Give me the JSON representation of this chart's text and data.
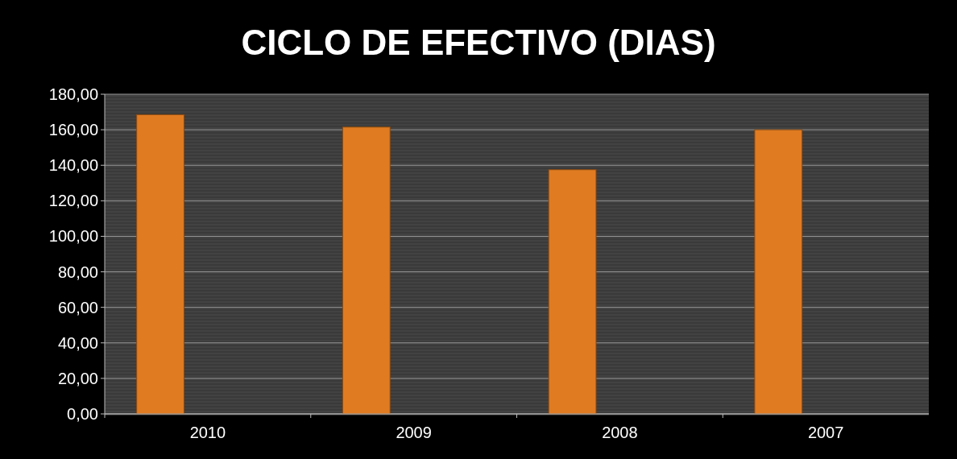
{
  "chart_data": {
    "type": "bar",
    "title": "CICLO DE EFECTIVO (DIAS)",
    "categories": [
      "2010",
      "2009",
      "2008",
      "2007"
    ],
    "values": [
      168.5,
      161.5,
      137.5,
      160
    ],
    "color": "#e07b22",
    "ylim": [
      0,
      180
    ],
    "yticks": [
      {
        "value": 0,
        "label": "0,00"
      },
      {
        "value": 20,
        "label": "20,00"
      },
      {
        "value": 40,
        "label": "40,00"
      },
      {
        "value": 60,
        "label": "60,00"
      },
      {
        "value": 80,
        "label": "80,00"
      },
      {
        "value": 100,
        "label": "100,00"
      },
      {
        "value": 120,
        "label": "120,00"
      },
      {
        "value": 140,
        "label": "140,00"
      },
      {
        "value": 160,
        "label": "160,00"
      },
      {
        "value": 180,
        "label": "180,00"
      }
    ],
    "grid": "y"
  }
}
